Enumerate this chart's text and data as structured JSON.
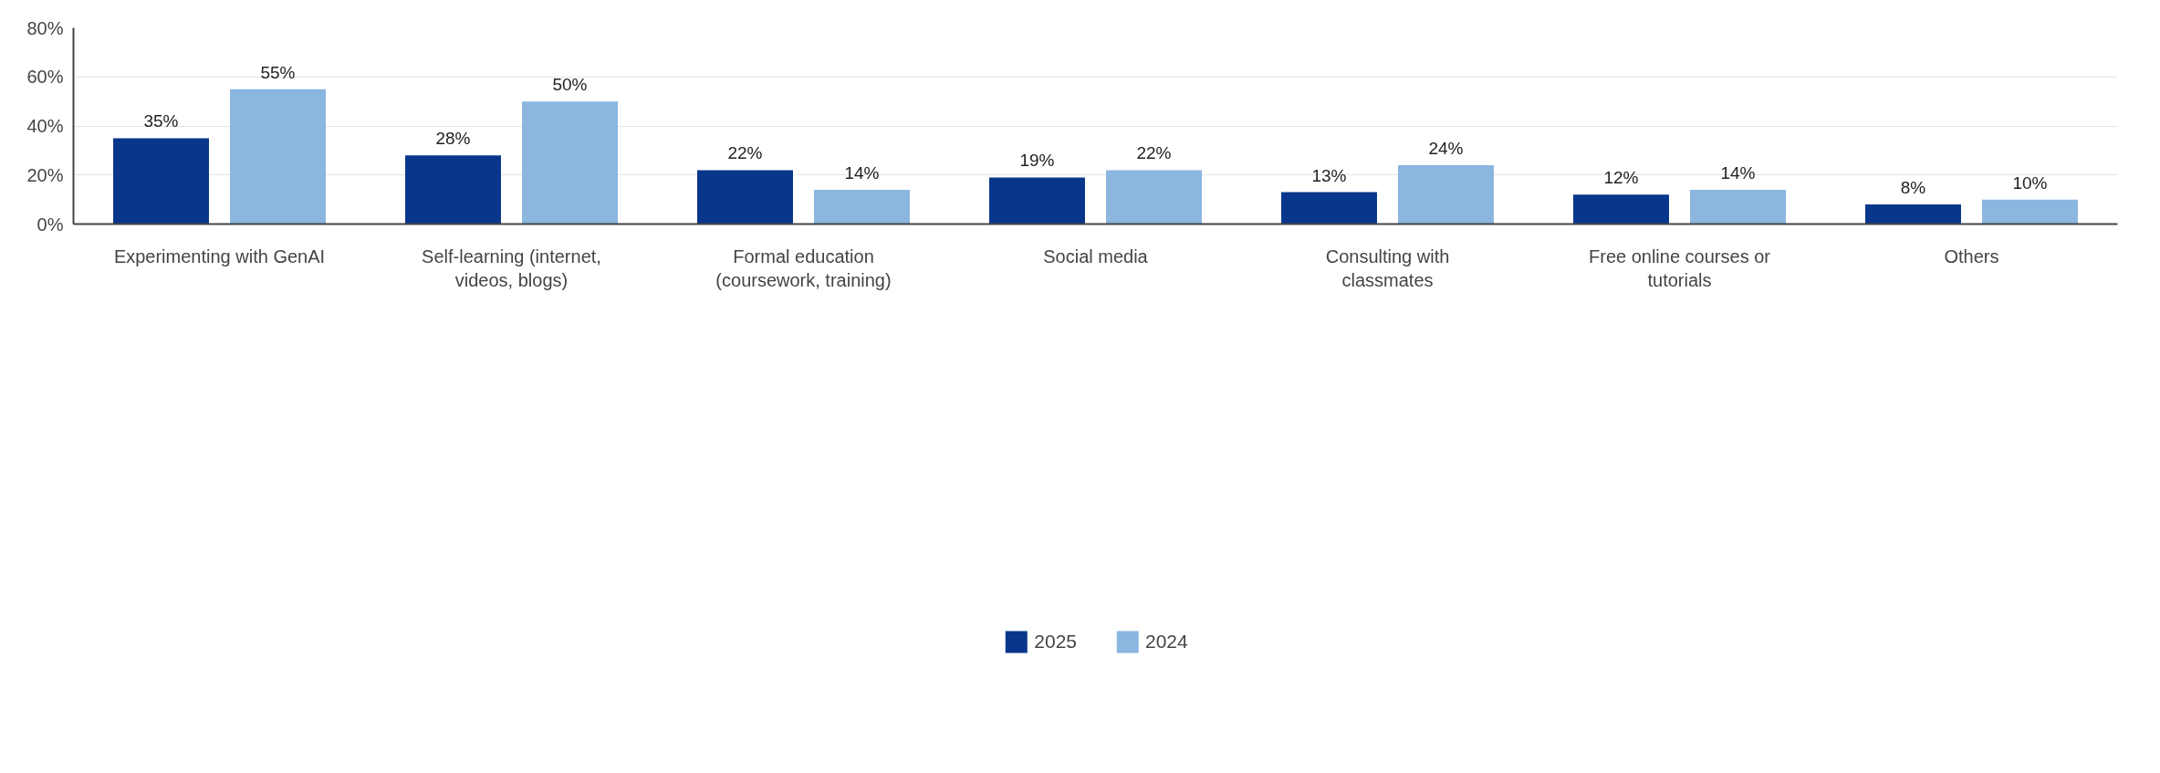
{
  "chart_data": {
    "type": "bar",
    "categories": [
      "Experimenting with GenAI",
      "Self-learning (internet, videos, blogs)",
      "Formal education (coursework, training)",
      "Social media",
      "Consulting with classmates",
      "Free online courses or tutorials",
      "Others"
    ],
    "series": [
      {
        "name": "2025",
        "color": "#08368b",
        "values": [
          35,
          28,
          22,
          19,
          13,
          12,
          8
        ],
        "value_labels": [
          "35%",
          "28%",
          "22%",
          "19%",
          "13%",
          "12%",
          "8%"
        ]
      },
      {
        "name": "2024",
        "color": "#8ab6e0",
        "values": [
          55,
          50,
          14,
          22,
          24,
          14,
          10
        ],
        "value_labels": [
          "55%",
          "50%",
          "14%",
          "22%",
          "24%",
          "14%",
          "10%"
        ]
      }
    ],
    "ylim": [
      0,
      80
    ],
    "yticks": [
      {
        "value": 0,
        "label": "0%"
      },
      {
        "value": 20,
        "label": "20%"
      },
      {
        "value": 40,
        "label": "40%"
      },
      {
        "value": 60,
        "label": "60%"
      },
      {
        "value": 80,
        "label": "80%"
      }
    ],
    "grid": "y",
    "legend": "bottom"
  }
}
